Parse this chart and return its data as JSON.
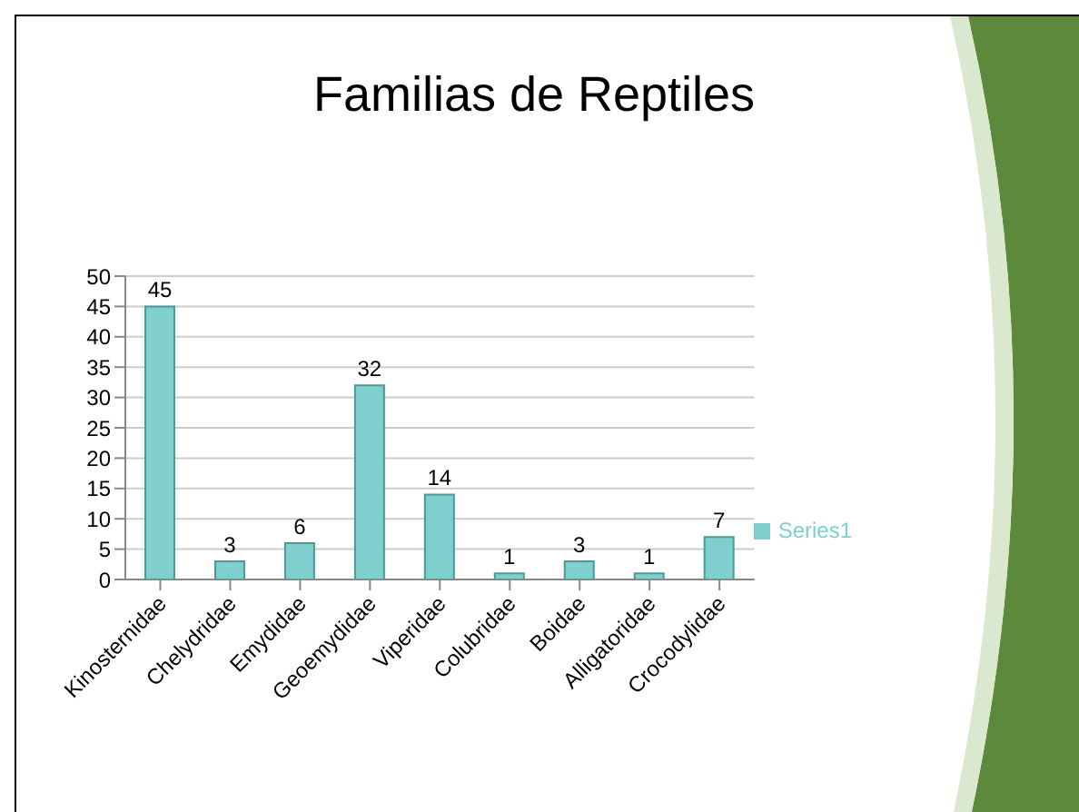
{
  "chart_data": {
    "type": "bar",
    "title": "Familias de Reptiles",
    "categories": [
      "Kinosternidae",
      "Chelydridae",
      "Emydidae",
      "Geoemydidae",
      "Viperidae",
      "Colubridae",
      "Boidae",
      "Alligatoridae",
      "Crocodylidae"
    ],
    "series": [
      {
        "name": "Series1",
        "color": "#7fcfcf",
        "values": [
          45,
          3,
          6,
          32,
          14,
          1,
          3,
          1,
          7
        ]
      }
    ],
    "ylim": [
      0,
      50
    ],
    "yticks": [
      0,
      5,
      10,
      15,
      20,
      25,
      30,
      35,
      40,
      45,
      50
    ],
    "grid": "y",
    "legend": "right",
    "data_labels": true
  }
}
